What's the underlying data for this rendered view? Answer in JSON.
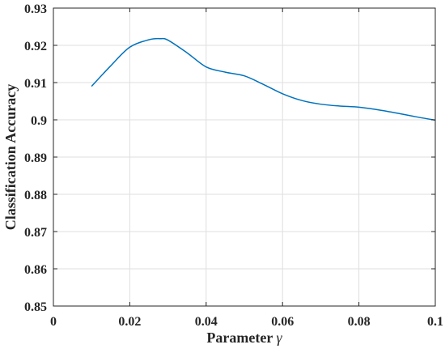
{
  "chart_data": {
    "type": "line",
    "xlabel": "Parameter",
    "xlabel_symbol": "γ",
    "ylabel": "Classification Accuracy",
    "xlim": [
      0,
      0.1
    ],
    "ylim": [
      0.85,
      0.93
    ],
    "xticks": [
      0,
      0.02,
      0.04,
      0.06,
      0.08,
      0.1
    ],
    "xtick_labels": [
      "0",
      "0.02",
      "0.04",
      "0.06",
      "0.08",
      "0.1"
    ],
    "yticks": [
      0.85,
      0.86,
      0.87,
      0.88,
      0.89,
      0.9,
      0.91,
      0.92,
      0.93
    ],
    "ytick_labels": [
      "0.85",
      "0.86",
      "0.87",
      "0.88",
      "0.89",
      "0.9",
      "0.91",
      "0.92",
      "0.93"
    ],
    "grid": true,
    "series": [
      {
        "color": "#0072bd",
        "x": [
          0.01,
          0.015,
          0.02,
          0.025,
          0.028,
          0.03,
          0.035,
          0.04,
          0.045,
          0.05,
          0.055,
          0.06,
          0.065,
          0.07,
          0.075,
          0.08,
          0.085,
          0.09,
          0.095,
          0.1
        ],
        "y": [
          0.909,
          0.9145,
          0.9195,
          0.9215,
          0.9218,
          0.9214,
          0.918,
          0.9142,
          0.9128,
          0.9118,
          0.9095,
          0.907,
          0.9052,
          0.9042,
          0.9037,
          0.9034,
          0.9027,
          0.9018,
          0.9008,
          0.8999
        ]
      }
    ]
  }
}
